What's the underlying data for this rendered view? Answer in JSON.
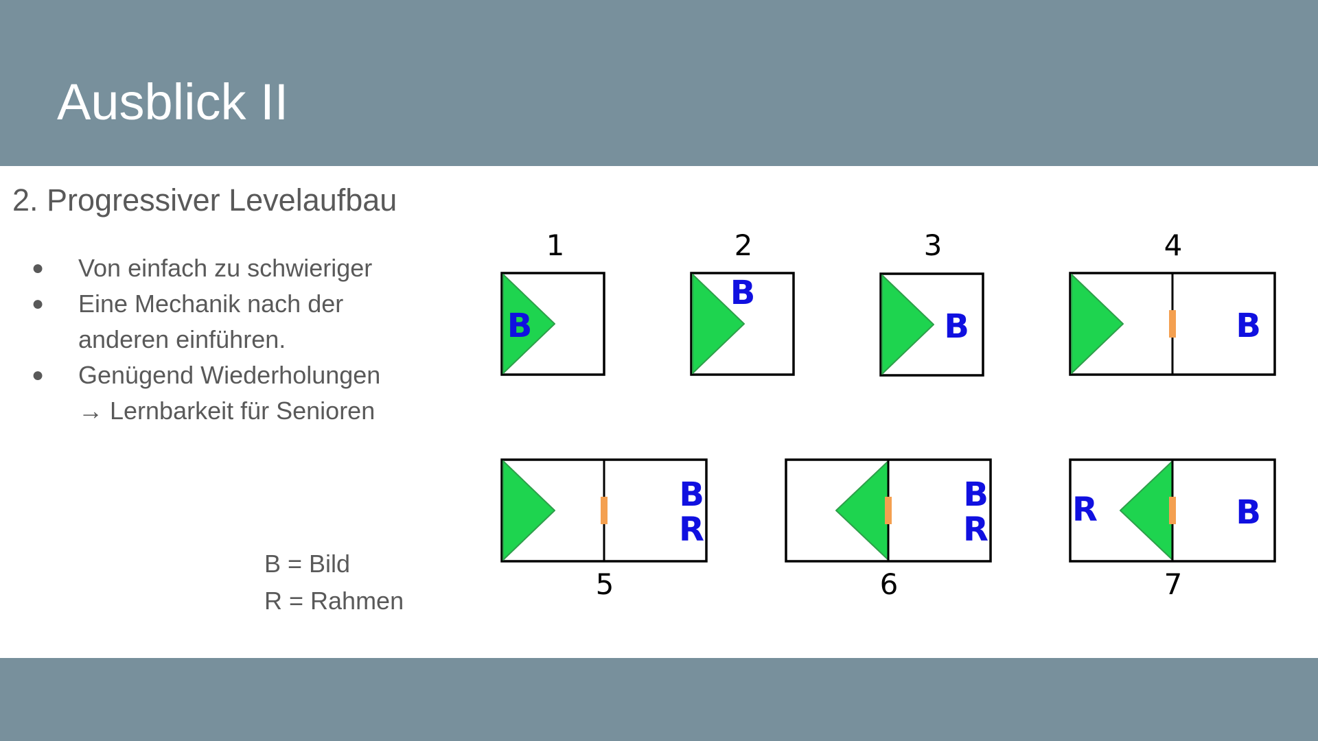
{
  "slide": {
    "title": "Ausblick II",
    "subtitle": "2. Progressiver Levelaufbau",
    "bullet_symbol": "●",
    "bullets": [
      {
        "lines": [
          "Von einfach zu schwieriger"
        ]
      },
      {
        "lines": [
          "Eine Mechanik nach der",
          "anderen einführen."
        ]
      },
      {
        "lines": [
          "Genügend Wiederholungen",
          "→ Lernbarkeit für Senioren"
        ]
      }
    ],
    "legend": [
      "B = Bild",
      "R = Rahmen"
    ]
  },
  "colors": {
    "band": "#78909c",
    "arrow": "#1ed44f",
    "arrow_stroke": "#2e9e4a",
    "letter": "#1010e0",
    "divider_marker": "#f4a050",
    "box_stroke": "#000000",
    "number": "#000000"
  },
  "levels": [
    {
      "number": "1",
      "layout": "single",
      "arrow": "right",
      "letters": [
        {
          "text": "B",
          "slot": "arrow-mid"
        }
      ]
    },
    {
      "number": "2",
      "layout": "single",
      "arrow": "right",
      "letters": [
        {
          "text": "B",
          "slot": "top-center"
        }
      ]
    },
    {
      "number": "3",
      "layout": "single",
      "arrow": "right",
      "letters": [
        {
          "text": "B",
          "slot": "right-mid"
        }
      ]
    },
    {
      "number": "4",
      "layout": "double",
      "arrow": "right",
      "letters": [
        {
          "text": "B",
          "slot": "right-mid"
        }
      ]
    },
    {
      "number": "5",
      "layout": "double",
      "arrow": "right",
      "letters": [
        {
          "text": "B",
          "slot": "right-upper"
        },
        {
          "text": "R",
          "slot": "right-lower"
        }
      ]
    },
    {
      "number": "6",
      "layout": "double",
      "arrow": "left",
      "letters": [
        {
          "text": "B",
          "slot": "right-upper"
        },
        {
          "text": "R",
          "slot": "right-lower"
        }
      ]
    },
    {
      "number": "7",
      "layout": "double",
      "arrow": "left",
      "letters": [
        {
          "text": "R",
          "slot": "left-mid"
        },
        {
          "text": "B",
          "slot": "right-mid"
        }
      ]
    }
  ]
}
